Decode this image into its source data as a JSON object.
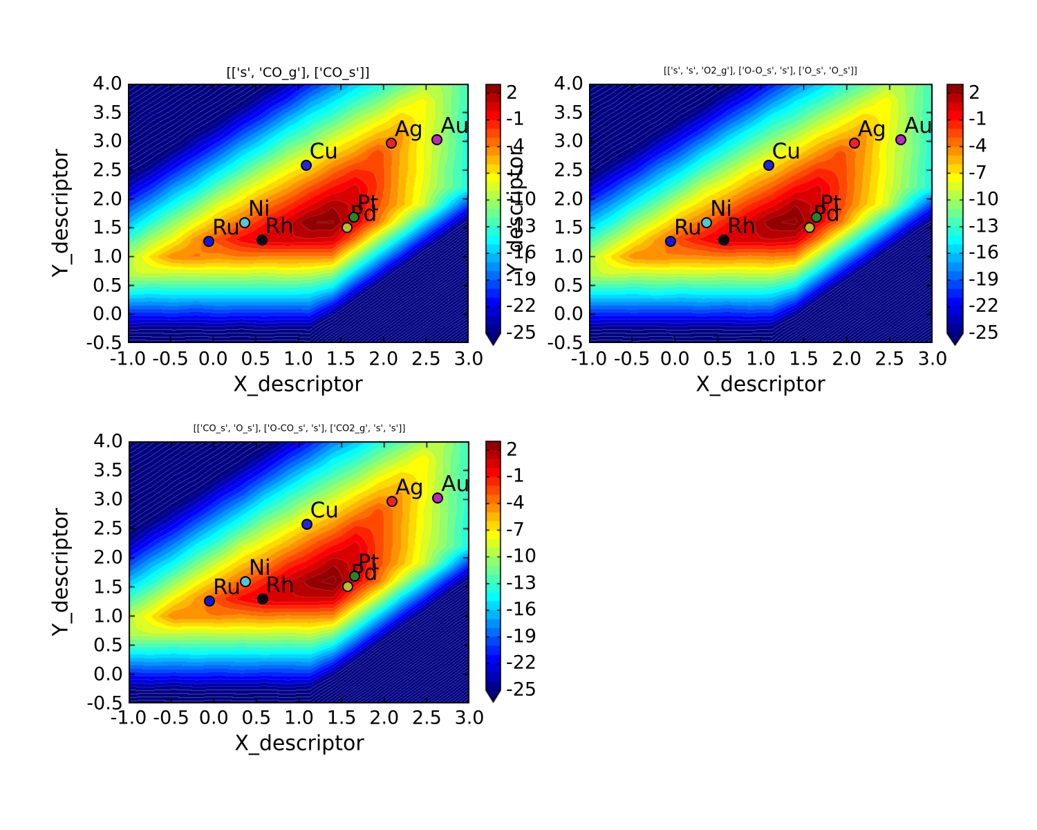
{
  "figure": {
    "background": "#ffffff"
  },
  "chart_data": {
    "type": "contour",
    "colormap": "jet",
    "xlabel": "X_descriptor",
    "ylabel": "Y_descriptor",
    "xlim": [
      -1.0,
      3.0
    ],
    "ylim": [
      -0.5,
      4.0
    ],
    "xticks": [
      -1.0,
      -0.5,
      0.0,
      0.5,
      1.0,
      1.5,
      2.0,
      2.5,
      3.0
    ],
    "yticks": [
      4.0,
      3.5,
      3.0,
      2.5,
      2.0,
      1.5,
      1.0,
      0.5,
      0.0,
      -0.5
    ],
    "xtick_labels": [
      "-1.0",
      "-0.5",
      "0.0",
      "0.5",
      "1.0",
      "1.5",
      "2.0",
      "2.5",
      "3.0"
    ],
    "ytick_labels": [
      "4.0",
      "3.5",
      "3.0",
      "2.5",
      "2.0",
      "1.5",
      "1.0",
      "0.5",
      "0.0",
      "-0.5"
    ],
    "colorbar": {
      "tick_labels": [
        "2",
        "-1",
        "-4",
        "-7",
        "-10",
        "-13",
        "-16",
        "-19",
        "-22",
        "-25"
      ],
      "tick_values": [
        2,
        -1,
        -4,
        -7,
        -10,
        -13,
        -16,
        -19,
        -22,
        -25
      ],
      "vmax": 3,
      "vmin": -25,
      "bands": 28,
      "extend_min": true
    },
    "subplots": [
      {
        "title": "[['s', 'CO_g'], ['CO_s']]"
      },
      {
        "title": "[['s', 's', 'O2_g'], ['O-O_s', 's'], ['O_s', 'O_s']]"
      },
      {
        "title": "[['CO_s', 'O_s'], ['O-CO_s', 's'], ['CO2_g', 's', 's']]"
      }
    ],
    "points": [
      {
        "label": "Ru",
        "x": -0.05,
        "y": 1.26,
        "color": "#1414e6"
      },
      {
        "label": "Ni",
        "x": 0.37,
        "y": 1.59,
        "color": "#53c6d6"
      },
      {
        "label": "Rh",
        "x": 0.57,
        "y": 1.29,
        "color": "#0a0a0a"
      },
      {
        "label": "Cu",
        "x": 1.09,
        "y": 2.58,
        "color": "#2323e8"
      },
      {
        "label": "Pd",
        "x": 1.57,
        "y": 1.51,
        "color": "#bcbc28"
      },
      {
        "label": "Pt",
        "x": 1.65,
        "y": 1.69,
        "color": "#228922"
      },
      {
        "label": "Ag",
        "x": 2.09,
        "y": 2.97,
        "color": "#ee2222"
      },
      {
        "label": "Au",
        "x": 2.63,
        "y": 3.03,
        "color": "#c026c0"
      }
    ],
    "volcano_peak": {
      "x": 1.45,
      "y": 1.85,
      "z_max": 2.8
    }
  }
}
